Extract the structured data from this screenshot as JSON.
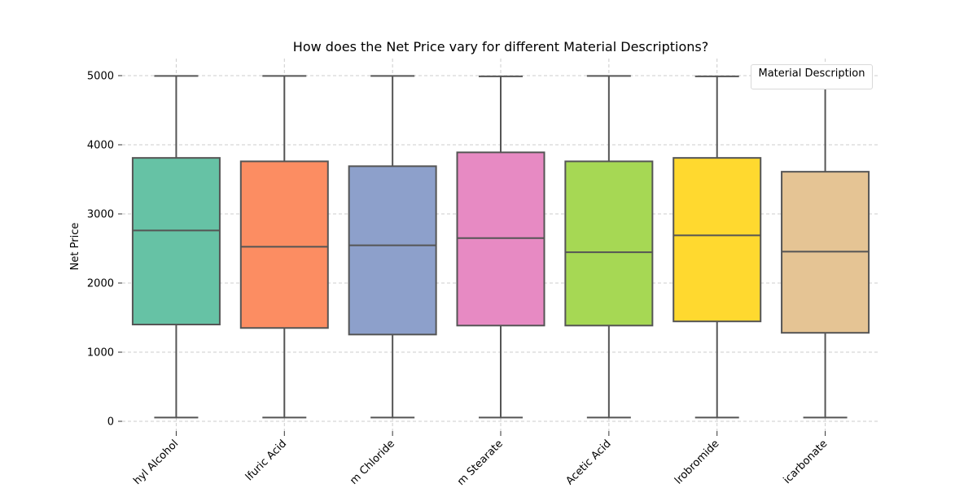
{
  "chart_data": {
    "type": "box",
    "title": "How does the Net Price vary for different Material Descriptions?",
    "xlabel": "",
    "ylabel": "Net Price",
    "ylim": [
      -150,
      5250
    ],
    "yticks": [
      0,
      1000,
      2000,
      3000,
      4000,
      5000
    ],
    "grid": true,
    "legend": {
      "title": "Material Description",
      "placement": "top-right",
      "entries": []
    },
    "categories": [
      "hyl Alcohol",
      "lfuric Acid",
      "m Chloride",
      "m Stearate",
      "Acetic Acid",
      "lrobromide",
      "icarbonate"
    ],
    "boxes": [
      {
        "category": "hyl Alcohol",
        "min": 55,
        "q1": 1400,
        "median": 2760,
        "q3": 3810,
        "max": 4995,
        "color": "#66c2a5"
      },
      {
        "category": "lfuric Acid",
        "min": 55,
        "q1": 1350,
        "median": 2525,
        "q3": 3760,
        "max": 4995,
        "color": "#fc8d62"
      },
      {
        "category": "m Chloride",
        "min": 55,
        "q1": 1255,
        "median": 2545,
        "q3": 3690,
        "max": 4995,
        "color": "#8da0cb"
      },
      {
        "category": "m Stearate",
        "min": 55,
        "q1": 1385,
        "median": 2650,
        "q3": 3890,
        "max": 4990,
        "color": "#e78ac3"
      },
      {
        "category": "Acetic Acid",
        "min": 55,
        "q1": 1385,
        "median": 2445,
        "q3": 3760,
        "max": 4995,
        "color": "#a6d854"
      },
      {
        "category": "lrobromide",
        "min": 55,
        "q1": 1445,
        "median": 2690,
        "q3": 3810,
        "max": 4990,
        "color": "#ffd92f"
      },
      {
        "category": "icarbonate",
        "min": 55,
        "q1": 1280,
        "median": 2455,
        "q3": 3610,
        "max": 4995,
        "color": "#e5c494"
      }
    ]
  }
}
